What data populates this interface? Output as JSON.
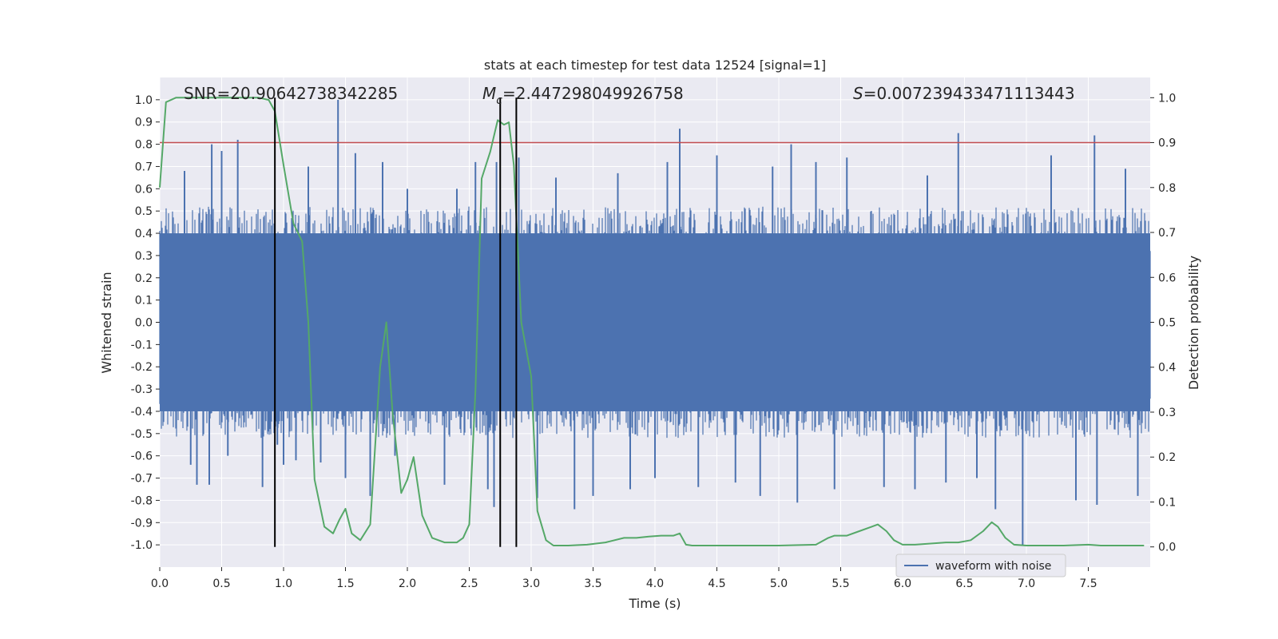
{
  "chart_data": {
    "type": "line",
    "title": "stats at each timestep for test data 12524 [signal=1]",
    "xlabel": "Time (s)",
    "ylabel_left": "Whitened strain",
    "ylabel_right": "Detection probability",
    "xlim": [
      0.0,
      8.0
    ],
    "ylim_left": [
      -1.1,
      1.1
    ],
    "ylim_right": [
      -0.045,
      1.045
    ],
    "x_ticks": [
      "0.0",
      "0.5",
      "1.0",
      "1.5",
      "2.0",
      "2.5",
      "3.0",
      "3.5",
      "4.0",
      "4.5",
      "5.0",
      "5.5",
      "6.0",
      "6.5",
      "7.0",
      "7.5"
    ],
    "y_left_ticks": [
      "1.0",
      "0.9",
      "0.8",
      "0.7",
      "0.6",
      "0.5",
      "0.4",
      "0.3",
      "0.2",
      "0.1",
      "0.0",
      "-0.1",
      "-0.2",
      "-0.3",
      "-0.4",
      "-0.5",
      "-0.6",
      "-0.7",
      "-0.8",
      "-0.9",
      "-1.0"
    ],
    "y_right_ticks": [
      "1.0",
      "0.9",
      "0.8",
      "0.7",
      "0.6",
      "0.5",
      "0.4",
      "0.3",
      "0.2",
      "0.1",
      "0.0"
    ],
    "grid": true,
    "background": "#eaeaf2",
    "annotations": {
      "snr": "SNR=20.90642738342285",
      "mc_symbol": "M",
      "mc_sub": "c",
      "mc_value": "=2.447298049926758",
      "s_symbol": "S",
      "s_value": "=0.007239433471113443"
    },
    "threshold": {
      "value": 0.9,
      "axis": "right",
      "color": "#c44e52"
    },
    "vertical_lines": {
      "x": [
        0.93,
        2.75,
        2.88
      ],
      "y_range": [
        0.0,
        1.0
      ],
      "axis": "right",
      "color": "#000000"
    },
    "series": [
      {
        "name": "waveform with noise",
        "axis": "left",
        "color": "#4c72b0",
        "style": "dense-noise",
        "core_amplitude": 0.4,
        "spikes": [
          {
            "x": 0.2,
            "v": 0.68
          },
          {
            "x": 0.25,
            "v": -0.64
          },
          {
            "x": 0.3,
            "v": -0.73
          },
          {
            "x": 0.4,
            "v": -0.73
          },
          {
            "x": 0.42,
            "v": 0.8
          },
          {
            "x": 0.5,
            "v": 0.77
          },
          {
            "x": 0.55,
            "v": -0.6
          },
          {
            "x": 0.63,
            "v": 0.82
          },
          {
            "x": 0.83,
            "v": -0.74
          },
          {
            "x": 0.95,
            "v": -0.55
          },
          {
            "x": 1.0,
            "v": -0.64
          },
          {
            "x": 1.1,
            "v": -0.62
          },
          {
            "x": 1.2,
            "v": 0.7
          },
          {
            "x": 1.3,
            "v": -0.63
          },
          {
            "x": 1.44,
            "v": 1.0
          },
          {
            "x": 1.5,
            "v": -0.7
          },
          {
            "x": 1.58,
            "v": 0.76
          },
          {
            "x": 1.7,
            "v": -0.78
          },
          {
            "x": 1.8,
            "v": 0.72
          },
          {
            "x": 1.9,
            "v": -0.6
          },
          {
            "x": 2.0,
            "v": 0.6
          },
          {
            "x": 2.3,
            "v": -0.73
          },
          {
            "x": 2.4,
            "v": 0.6
          },
          {
            "x": 2.55,
            "v": 0.72
          },
          {
            "x": 2.65,
            "v": -0.75
          },
          {
            "x": 2.7,
            "v": -0.83
          },
          {
            "x": 2.72,
            "v": 0.72
          },
          {
            "x": 2.9,
            "v": 0.74
          },
          {
            "x": 3.05,
            "v": -0.79
          },
          {
            "x": 3.2,
            "v": 0.65
          },
          {
            "x": 3.35,
            "v": -0.84
          },
          {
            "x": 3.5,
            "v": -0.78
          },
          {
            "x": 3.7,
            "v": 0.67
          },
          {
            "x": 3.8,
            "v": -0.75
          },
          {
            "x": 4.0,
            "v": -0.7
          },
          {
            "x": 4.1,
            "v": 0.72
          },
          {
            "x": 4.2,
            "v": 0.87
          },
          {
            "x": 4.35,
            "v": -0.74
          },
          {
            "x": 4.5,
            "v": 0.75
          },
          {
            "x": 4.65,
            "v": -0.72
          },
          {
            "x": 4.85,
            "v": -0.78
          },
          {
            "x": 4.95,
            "v": 0.7
          },
          {
            "x": 5.1,
            "v": 0.8
          },
          {
            "x": 5.15,
            "v": -0.81
          },
          {
            "x": 5.3,
            "v": 0.72
          },
          {
            "x": 5.45,
            "v": -0.75
          },
          {
            "x": 5.55,
            "v": 0.74
          },
          {
            "x": 5.85,
            "v": -0.74
          },
          {
            "x": 6.1,
            "v": -0.75
          },
          {
            "x": 6.2,
            "v": 0.66
          },
          {
            "x": 6.35,
            "v": -0.72
          },
          {
            "x": 6.45,
            "v": 0.85
          },
          {
            "x": 6.6,
            "v": -0.7
          },
          {
            "x": 6.75,
            "v": -0.84
          },
          {
            "x": 6.97,
            "v": -1.0
          },
          {
            "x": 7.2,
            "v": 0.75
          },
          {
            "x": 7.4,
            "v": -0.8
          },
          {
            "x": 7.55,
            "v": 0.84
          },
          {
            "x": 7.57,
            "v": -0.82
          },
          {
            "x": 7.8,
            "v": 0.69
          },
          {
            "x": 7.9,
            "v": -0.78
          }
        ]
      },
      {
        "name": "",
        "axis": "right",
        "color": "#55a868",
        "x": [
          0.0,
          0.05,
          0.13,
          0.25,
          0.4,
          0.55,
          0.7,
          0.8,
          0.88,
          0.93,
          1.0,
          1.08,
          1.15,
          1.2,
          1.25,
          1.33,
          1.4,
          1.45,
          1.5,
          1.55,
          1.62,
          1.7,
          1.78,
          1.83,
          1.88,
          1.95,
          2.0,
          2.05,
          2.12,
          2.2,
          2.3,
          2.4,
          2.45,
          2.5,
          2.55,
          2.6,
          2.67,
          2.73,
          2.78,
          2.82,
          2.86,
          2.92,
          3.0,
          3.05,
          3.12,
          3.18,
          3.3,
          3.45,
          3.6,
          3.75,
          3.85,
          3.95,
          4.05,
          4.15,
          4.2,
          4.25,
          4.3,
          4.5,
          4.8,
          5.0,
          5.3,
          5.4,
          5.45,
          5.55,
          5.65,
          5.75,
          5.8,
          5.87,
          5.93,
          6.0,
          6.1,
          6.25,
          6.35,
          6.45,
          6.55,
          6.65,
          6.72,
          6.77,
          6.83,
          6.9,
          7.0,
          7.3,
          7.5,
          7.6,
          7.75,
          7.95
        ],
        "y": [
          0.8,
          0.99,
          1.0,
          1.0,
          1.0,
          1.0,
          1.0,
          1.0,
          0.995,
          0.97,
          0.85,
          0.72,
          0.68,
          0.5,
          0.15,
          0.045,
          0.03,
          0.06,
          0.085,
          0.03,
          0.015,
          0.05,
          0.4,
          0.5,
          0.3,
          0.12,
          0.15,
          0.2,
          0.07,
          0.02,
          0.01,
          0.01,
          0.02,
          0.05,
          0.35,
          0.82,
          0.88,
          0.95,
          0.94,
          0.945,
          0.85,
          0.5,
          0.38,
          0.08,
          0.015,
          0.003,
          0.003,
          0.005,
          0.01,
          0.02,
          0.02,
          0.023,
          0.025,
          0.025,
          0.03,
          0.005,
          0.003,
          0.003,
          0.003,
          0.003,
          0.005,
          0.02,
          0.025,
          0.025,
          0.035,
          0.045,
          0.05,
          0.035,
          0.015,
          0.005,
          0.005,
          0.008,
          0.01,
          0.01,
          0.015,
          0.035,
          0.055,
          0.045,
          0.02,
          0.005,
          0.003,
          0.003,
          0.005,
          0.003,
          0.003,
          0.003
        ]
      }
    ],
    "legend": {
      "placement": "lower-right",
      "entries": [
        "waveform with noise"
      ]
    }
  }
}
